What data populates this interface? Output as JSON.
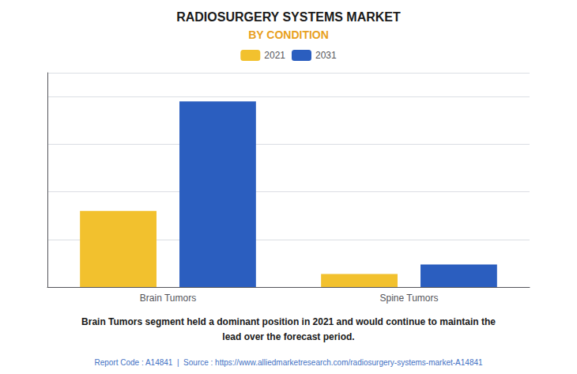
{
  "chart_data": {
    "type": "bar",
    "title": "RADIOSURGERY SYSTEMS MARKET",
    "subtitle": "BY CONDITION",
    "categories": [
      "Brain Tumors",
      "Spine Tumors"
    ],
    "series": [
      {
        "name": "2021",
        "color": "#F2C12E",
        "values": [
          3.2,
          0.55
        ]
      },
      {
        "name": "2031",
        "color": "#2B5EBF",
        "values": [
          7.8,
          0.95
        ]
      }
    ],
    "ylim": [
      0,
      9
    ],
    "yticks": [
      0,
      2,
      4,
      6,
      8
    ],
    "grid": true,
    "legend": "top",
    "tick_labels": "x",
    "annotations": [
      "Brain Tumors segment held a dominant position in 2021 and would continue to maintain the\nlead over the forecast period.",
      "Report Code : A14841  |  Source : https://www.alliedmarketresearch.com/radiosurgery-systems-market-A14841"
    ]
  }
}
